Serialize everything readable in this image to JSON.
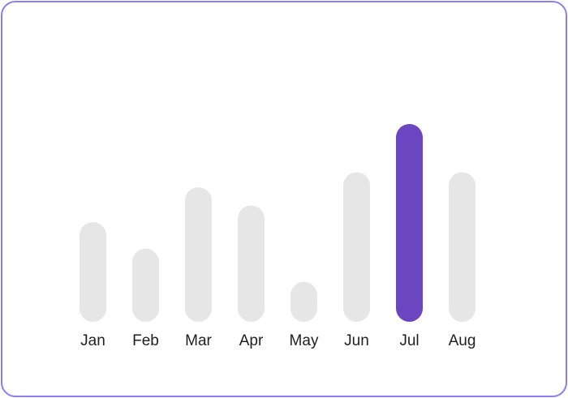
{
  "chart_data": {
    "type": "bar",
    "categories": [
      "Jan",
      "Feb",
      "Mar",
      "Apr",
      "May",
      "Jun",
      "Jul",
      "Aug"
    ],
    "values": [
      60,
      44,
      81,
      70,
      24,
      90,
      119,
      90
    ],
    "highlight_index": 6,
    "ylim": [
      0,
      120
    ],
    "grid": false,
    "colors": {
      "bar": "#e6e6e6",
      "highlight": "#6b46c1",
      "border": "#8a7ff0",
      "label": "#1f1f1f"
    }
  }
}
